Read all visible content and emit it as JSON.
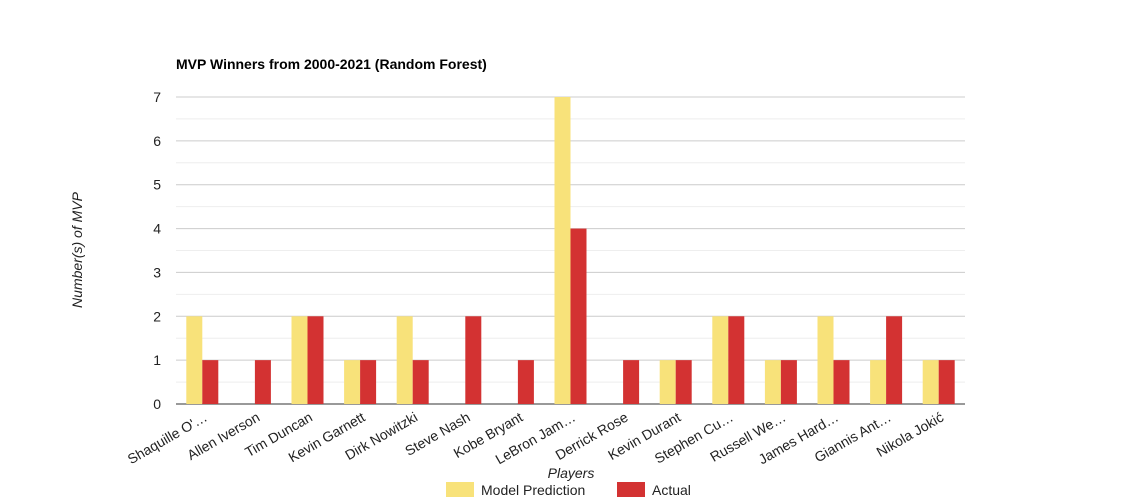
{
  "chart_data": {
    "type": "bar",
    "title": "MVP Winners from 2000-2021 (Random Forest)",
    "xlabel": "Players",
    "ylabel": "Number(s) of MVP",
    "ylim": [
      0,
      7
    ],
    "yticks": [
      "0",
      "1",
      "2",
      "3",
      "4",
      "5",
      "6",
      "7"
    ],
    "grid": true,
    "legend_position": "bottom",
    "categories": [
      "Shaquille O'…",
      "Allen Iverson",
      "Tim Duncan",
      "Kevin Garnett",
      "Dirk Nowitzki",
      "Steve Nash",
      "Kobe Bryant",
      "LeBron Jam…",
      "Derrick Rose",
      "Kevin Durant",
      "Stephen Cu…",
      "Russell We…",
      "James Hard…",
      "Giannis Ant…",
      "Nikola Jokić"
    ],
    "series": [
      {
        "name": "Model Prediction",
        "color": "#f8e27a",
        "values": [
          2,
          0,
          2,
          1,
          2,
          0,
          0,
          7,
          0,
          1,
          2,
          1,
          2,
          1,
          1
        ]
      },
      {
        "name": "Actual",
        "color": "#d33232",
        "values": [
          1,
          1,
          2,
          1,
          1,
          2,
          1,
          4,
          1,
          1,
          2,
          1,
          1,
          2,
          1
        ]
      }
    ]
  }
}
